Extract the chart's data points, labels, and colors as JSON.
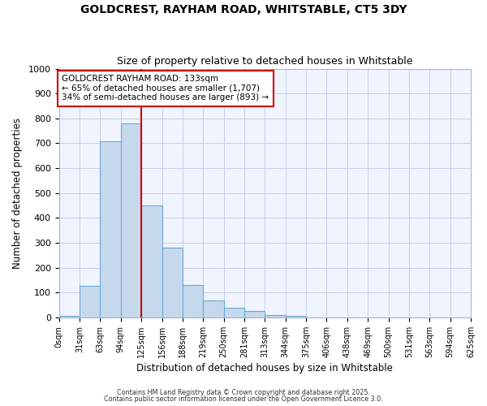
{
  "title": "GOLDCREST, RAYHAM ROAD, WHITSTABLE, CT5 3DY",
  "subtitle": "Size of property relative to detached houses in Whitstable",
  "xlabel": "Distribution of detached houses by size in Whitstable",
  "ylabel": "Number of detached properties",
  "bar_values": [
    5,
    128,
    707,
    780,
    450,
    280,
    130,
    70,
    40,
    25,
    10,
    8,
    0,
    0,
    0,
    0,
    0,
    0,
    0,
    0
  ],
  "bin_labels": [
    "0sqm",
    "31sqm",
    "63sqm",
    "94sqm",
    "125sqm",
    "156sqm",
    "188sqm",
    "219sqm",
    "250sqm",
    "281sqm",
    "313sqm",
    "344sqm",
    "375sqm",
    "406sqm",
    "438sqm",
    "469sqm",
    "500sqm",
    "531sqm",
    "563sqm",
    "594sqm",
    "625sqm"
  ],
  "bar_color": "#c6d9ec",
  "bar_edge_color": "#6aaad4",
  "vline_x_index": 4,
  "vline_color": "#cc0000",
  "annotation_text": "GOLDCREST RAYHAM ROAD: 133sqm\n← 65% of detached houses are smaller (1,707)\n34% of semi-detached houses are larger (893) →",
  "annotation_box_color": "white",
  "annotation_box_edge_color": "#cc0000",
  "ylim": [
    0,
    1000
  ],
  "yticks": [
    0,
    100,
    200,
    300,
    400,
    500,
    600,
    700,
    800,
    900,
    1000
  ],
  "footer1": "Contains HM Land Registry data © Crown copyright and database right 2025.",
  "footer2": "Contains public sector information licensed under the Open Government Licence 3.0.",
  "bg_color": "#ffffff",
  "plot_bg_color": "#f0f4ff",
  "grid_color": "#c8cce8"
}
